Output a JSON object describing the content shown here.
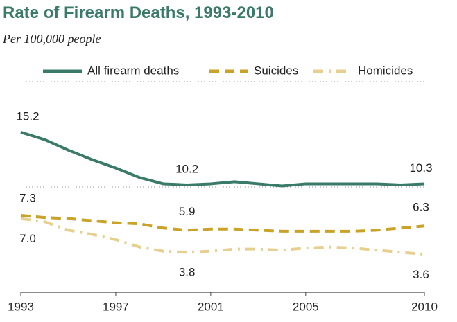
{
  "chart_data": {
    "type": "line",
    "title": "Rate of Firearm Deaths, 1993-2010",
    "subtitle": "Per 100,000 people",
    "x": [
      1993,
      1994,
      1995,
      1996,
      1997,
      1998,
      1999,
      2000,
      2001,
      2002,
      2003,
      2004,
      2005,
      2006,
      2007,
      2008,
      2009,
      2010
    ],
    "xlim": [
      1993,
      2010
    ],
    "xticks": [
      1993,
      1997,
      2001,
      2005,
      2010
    ],
    "ylim": [
      0,
      20
    ],
    "yticks": [
      0,
      10,
      20
    ],
    "grid": true,
    "legend": "top",
    "series": [
      {
        "name": "All firearm deaths",
        "color": "#3a7a68",
        "style": "solid",
        "values": [
          15.2,
          14.5,
          13.5,
          12.6,
          11.8,
          10.9,
          10.3,
          10.2,
          10.3,
          10.5,
          10.3,
          10.1,
          10.3,
          10.3,
          10.3,
          10.3,
          10.2,
          10.3
        ],
        "value_labels": [
          "15.2",
          null,
          null,
          null,
          null,
          null,
          null,
          "10.2",
          null,
          null,
          null,
          null,
          null,
          null,
          null,
          null,
          null,
          "10.3"
        ]
      },
      {
        "name": "Suicides",
        "color": "#c9a227",
        "style": "dashed",
        "values": [
          7.3,
          7.1,
          7.0,
          6.8,
          6.6,
          6.5,
          6.1,
          5.9,
          6.0,
          6.0,
          5.9,
          5.8,
          5.8,
          5.8,
          5.8,
          5.9,
          6.1,
          6.3
        ],
        "value_labels": [
          "7.3",
          null,
          null,
          null,
          null,
          null,
          null,
          "5.9",
          null,
          null,
          null,
          null,
          null,
          null,
          null,
          null,
          null,
          "6.3"
        ]
      },
      {
        "name": "Homicides",
        "color": "#e6cf8f",
        "style": "dashdot",
        "values": [
          7.0,
          6.7,
          5.9,
          5.5,
          5.0,
          4.3,
          3.9,
          3.8,
          3.9,
          4.1,
          4.1,
          4.0,
          4.2,
          4.3,
          4.2,
          4.0,
          3.8,
          3.6
        ],
        "value_labels": [
          "7.0",
          null,
          null,
          null,
          null,
          null,
          null,
          "3.8",
          null,
          null,
          null,
          null,
          null,
          null,
          null,
          null,
          null,
          "3.6"
        ]
      }
    ]
  }
}
